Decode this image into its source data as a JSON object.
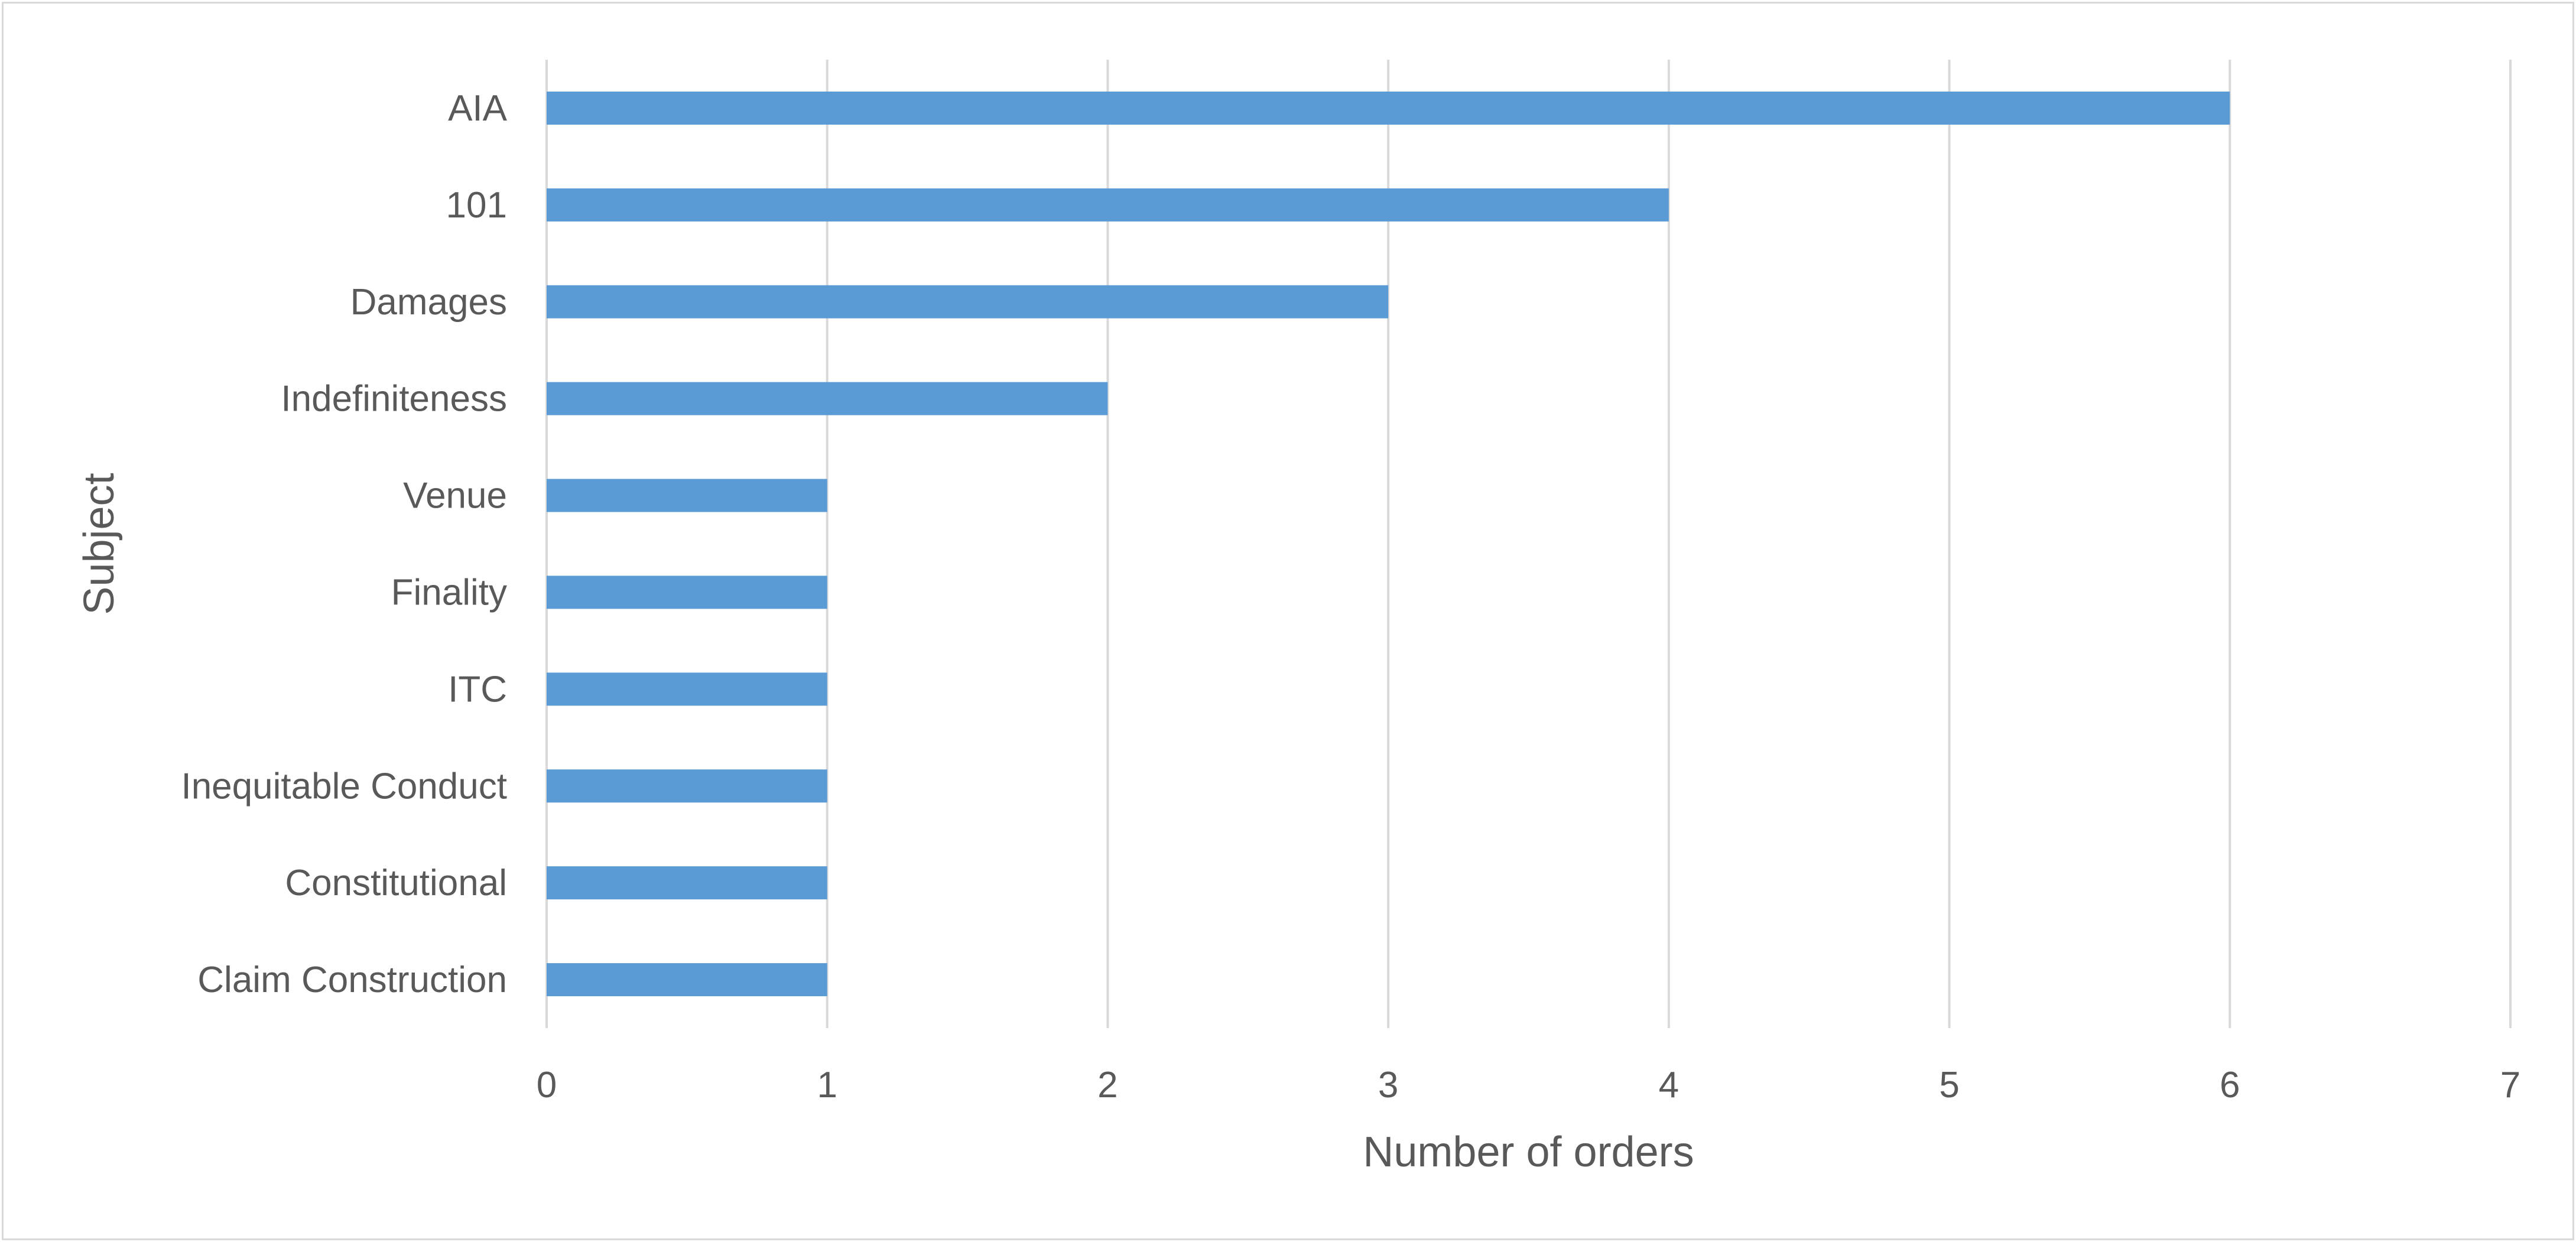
{
  "chart_data": {
    "type": "bar",
    "orientation": "horizontal",
    "categories": [
      "AIA",
      "101",
      "Damages",
      "Indefiniteness",
      "Venue",
      "Finality",
      "ITC",
      "Inequitable Conduct",
      "Constitutional",
      "Claim Construction"
    ],
    "values": [
      6,
      4,
      3,
      2,
      1,
      1,
      1,
      1,
      1,
      1
    ],
    "xlabel": "Number of orders",
    "ylabel": "Subject",
    "xlim": [
      0,
      7
    ],
    "xticks": [
      "0",
      "1",
      "2",
      "3",
      "4",
      "5",
      "6",
      "7"
    ],
    "grid": true,
    "legend": "none",
    "colors": {
      "bar": "#5b9bd5",
      "grid": "#d9d9d9",
      "text": "#595959",
      "border": "#d9d9d9"
    }
  }
}
